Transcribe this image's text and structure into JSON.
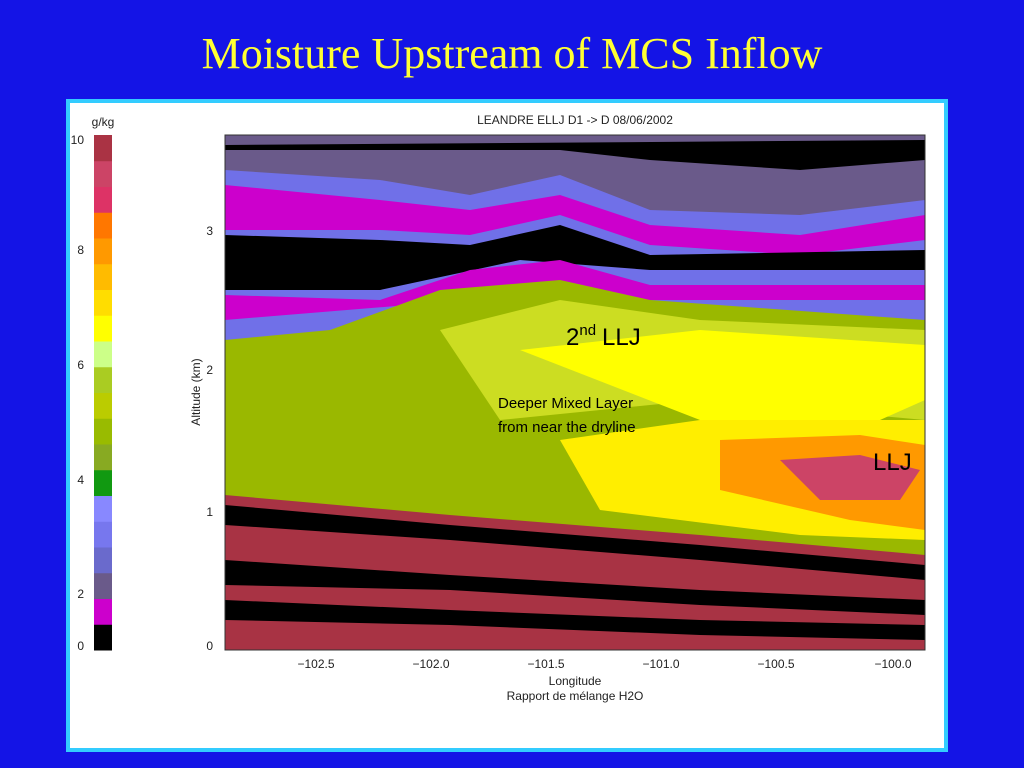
{
  "slide": {
    "title": "Moisture Upstream of MCS Inflow"
  },
  "figure": {
    "title": "LEANDRE ELLJ D1 -> D 08/06/2002",
    "colorbar": {
      "unit": "g/kg",
      "ticks": [
        "10",
        "8",
        "6",
        "4",
        "2",
        "0"
      ]
    },
    "y_axis": {
      "label": "Altitude (km)",
      "ticks": [
        "3",
        "2",
        "1",
        "0"
      ]
    },
    "x_axis": {
      "label": "Longitude",
      "ticks": [
        "−102.5",
        "−102.0",
        "−101.5",
        "−101.0",
        "−100.5",
        "−100.0"
      ]
    },
    "caption": "Rapport de mélange H2O",
    "annotations": {
      "second_llj": {
        "number": "2",
        "suffix": "nd",
        "text": "LLJ"
      },
      "mixed_layer": [
        "Deeper Mixed Layer",
        "from near the dryline"
      ],
      "llj": "LLJ"
    }
  }
}
